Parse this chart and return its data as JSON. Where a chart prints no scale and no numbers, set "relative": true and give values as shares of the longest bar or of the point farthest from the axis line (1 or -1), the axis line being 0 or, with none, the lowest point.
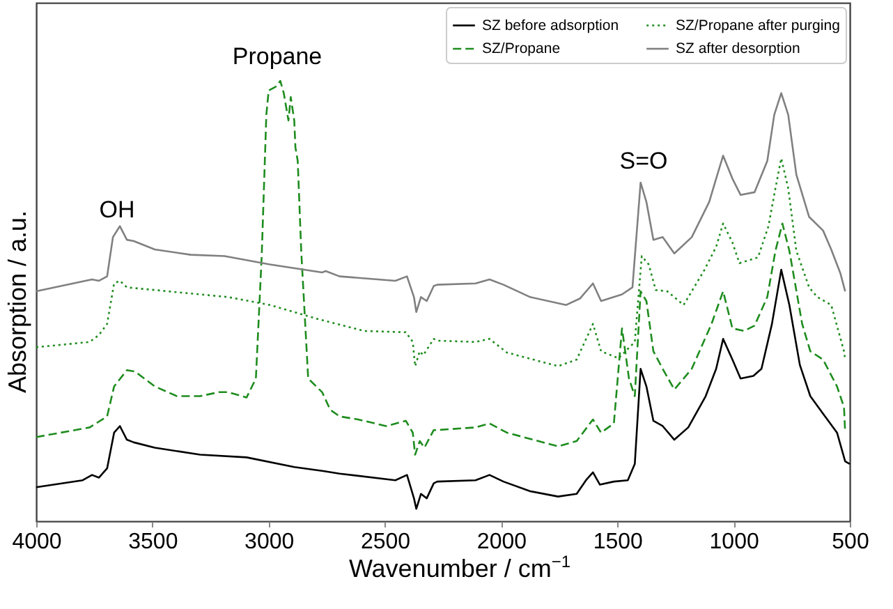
{
  "chart_data": {
    "type": "line",
    "relative": true,
    "xlabel": "Wavenumber / cm$^{−1}$",
    "ylabel": "Absorption / a.u.",
    "xlim": [
      4000,
      500
    ],
    "xticks": [
      4000,
      3500,
      3000,
      2500,
      2000,
      1500,
      1000,
      500
    ],
    "grid": false,
    "legend": "top right",
    "tick_labels": "x",
    "annotations": [
      "OH",
      "Propane",
      "S=O"
    ],
    "series": [
      {
        "name": "SZ before adsorption",
        "color": "#000000",
        "line_style": "solid",
        "x": [
          4000,
          3800,
          3760,
          3730,
          3695,
          3665,
          3640,
          3610,
          3580,
          3490,
          3295,
          3095,
          2890,
          2765,
          2695,
          2455,
          2405,
          2375,
          2365,
          2345,
          2320,
          2290,
          2275,
          2110,
          2050,
          1990,
          1875,
          1755,
          1675,
          1635,
          1605,
          1575,
          1515,
          1455,
          1425,
          1400,
          1375,
          1345,
          1305,
          1255,
          1195,
          1120,
          1075,
          1045,
          1005,
          970,
          915,
          880,
          835,
          795,
          760,
          715,
          670,
          615,
          555,
          520,
          500
        ],
        "values": [
          0.077,
          0.093,
          0.105,
          0.099,
          0.12,
          0.201,
          0.216,
          0.185,
          0.179,
          0.167,
          0.151,
          0.145,
          0.123,
          0.114,
          0.108,
          0.093,
          0.105,
          0.052,
          0.028,
          0.062,
          0.052,
          0.086,
          0.09,
          0.093,
          0.105,
          0.09,
          0.068,
          0.056,
          0.062,
          0.093,
          0.111,
          0.083,
          0.09,
          0.093,
          0.13,
          0.346,
          0.306,
          0.228,
          0.216,
          0.185,
          0.213,
          0.284,
          0.346,
          0.414,
          0.367,
          0.324,
          0.33,
          0.346,
          0.448,
          0.571,
          0.491,
          0.355,
          0.284,
          0.244,
          0.201,
          0.136,
          0.13
        ]
      },
      {
        "name": "SZ/Propane",
        "color": "#1e8c1e",
        "line_style": "dashed",
        "x": [
          4000,
          3770,
          3695,
          3665,
          3610,
          3575,
          3490,
          3395,
          3295,
          3215,
          3175,
          3095,
          3055,
          3030,
          3010,
          3000,
          2965,
          2950,
          2935,
          2915,
          2905,
          2890,
          2885,
          2875,
          2860,
          2830,
          2770,
          2735,
          2695,
          2615,
          2495,
          2410,
          2380,
          2370,
          2350,
          2330,
          2290,
          2275,
          2110,
          2050,
          1975,
          1755,
          1675,
          1605,
          1570,
          1515,
          1480,
          1450,
          1425,
          1400,
          1375,
          1345,
          1305,
          1255,
          1180,
          1095,
          1045,
          1005,
          955,
          910,
          855,
          820,
          790,
          760,
          705,
          670,
          615,
          555,
          525,
          520
        ],
        "values": [
          0.191,
          0.213,
          0.238,
          0.306,
          0.343,
          0.34,
          0.306,
          0.284,
          0.284,
          0.293,
          0.293,
          0.281,
          0.324,
          0.602,
          0.923,
          0.978,
          0.988,
          1.0,
          0.972,
          0.91,
          0.963,
          0.91,
          0.849,
          0.818,
          0.614,
          0.324,
          0.293,
          0.253,
          0.238,
          0.231,
          0.216,
          0.228,
          0.201,
          0.151,
          0.182,
          0.167,
          0.207,
          0.207,
          0.213,
          0.222,
          0.201,
          0.17,
          0.182,
          0.231,
          0.201,
          0.222,
          0.438,
          0.324,
          0.284,
          0.522,
          0.5,
          0.386,
          0.346,
          0.299,
          0.346,
          0.448,
          0.522,
          0.438,
          0.432,
          0.444,
          0.509,
          0.614,
          0.676,
          0.614,
          0.448,
          0.386,
          0.367,
          0.306,
          0.259,
          0.201
        ]
      },
      {
        "name": "SZ/Propane after purging",
        "color": "#1e8c1e",
        "line_style": "dotted",
        "x": [
          4000,
          3770,
          3730,
          3695,
          3665,
          3640,
          3610,
          3490,
          3295,
          3175,
          2995,
          2795,
          2590,
          2410,
          2380,
          2370,
          2350,
          2335,
          2290,
          2275,
          2110,
          2050,
          1975,
          1755,
          1675,
          1605,
          1570,
          1495,
          1425,
          1395,
          1365,
          1335,
          1285,
          1215,
          1125,
          1075,
          1045,
          1005,
          975,
          895,
          850,
          820,
          795,
          765,
          730,
          675,
          640,
          580,
          525,
          520
        ],
        "values": [
          0.395,
          0.407,
          0.423,
          0.448,
          0.54,
          0.546,
          0.531,
          0.525,
          0.515,
          0.509,
          0.491,
          0.46,
          0.432,
          0.429,
          0.407,
          0.352,
          0.386,
          0.377,
          0.414,
          0.41,
          0.407,
          0.414,
          0.383,
          0.352,
          0.367,
          0.448,
          0.386,
          0.37,
          0.407,
          0.602,
          0.583,
          0.525,
          0.522,
          0.491,
          0.571,
          0.623,
          0.676,
          0.633,
          0.586,
          0.599,
          0.67,
          0.756,
          0.824,
          0.756,
          0.614,
          0.531,
          0.509,
          0.491,
          0.386,
          0.367
        ]
      },
      {
        "name": "SZ after desorption",
        "color": "#808080",
        "line_style": "solid",
        "x": [
          4000,
          3760,
          3730,
          3695,
          3670,
          3640,
          3610,
          3580,
          3490,
          3335,
          3190,
          2995,
          2770,
          2755,
          2695,
          2455,
          2405,
          2375,
          2365,
          2345,
          2320,
          2290,
          2275,
          2110,
          2050,
          1990,
          1875,
          1720,
          1660,
          1605,
          1570,
          1480,
          1435,
          1400,
          1375,
          1345,
          1305,
          1255,
          1180,
          1105,
          1075,
          1045,
          1005,
          970,
          910,
          855,
          825,
          795,
          765,
          730,
          675,
          615,
          580,
          540,
          520
        ],
        "values": [
          0.522,
          0.549,
          0.546,
          0.556,
          0.645,
          0.67,
          0.639,
          0.636,
          0.617,
          0.605,
          0.602,
          0.583,
          0.565,
          0.568,
          0.556,
          0.546,
          0.556,
          0.509,
          0.475,
          0.509,
          0.5,
          0.534,
          0.537,
          0.54,
          0.549,
          0.537,
          0.509,
          0.491,
          0.506,
          0.54,
          0.5,
          0.515,
          0.531,
          0.769,
          0.725,
          0.639,
          0.645,
          0.608,
          0.645,
          0.725,
          0.778,
          0.83,
          0.778,
          0.741,
          0.747,
          0.818,
          0.923,
          0.972,
          0.923,
          0.787,
          0.691,
          0.66,
          0.617,
          0.562,
          0.522
        ]
      }
    ]
  }
}
